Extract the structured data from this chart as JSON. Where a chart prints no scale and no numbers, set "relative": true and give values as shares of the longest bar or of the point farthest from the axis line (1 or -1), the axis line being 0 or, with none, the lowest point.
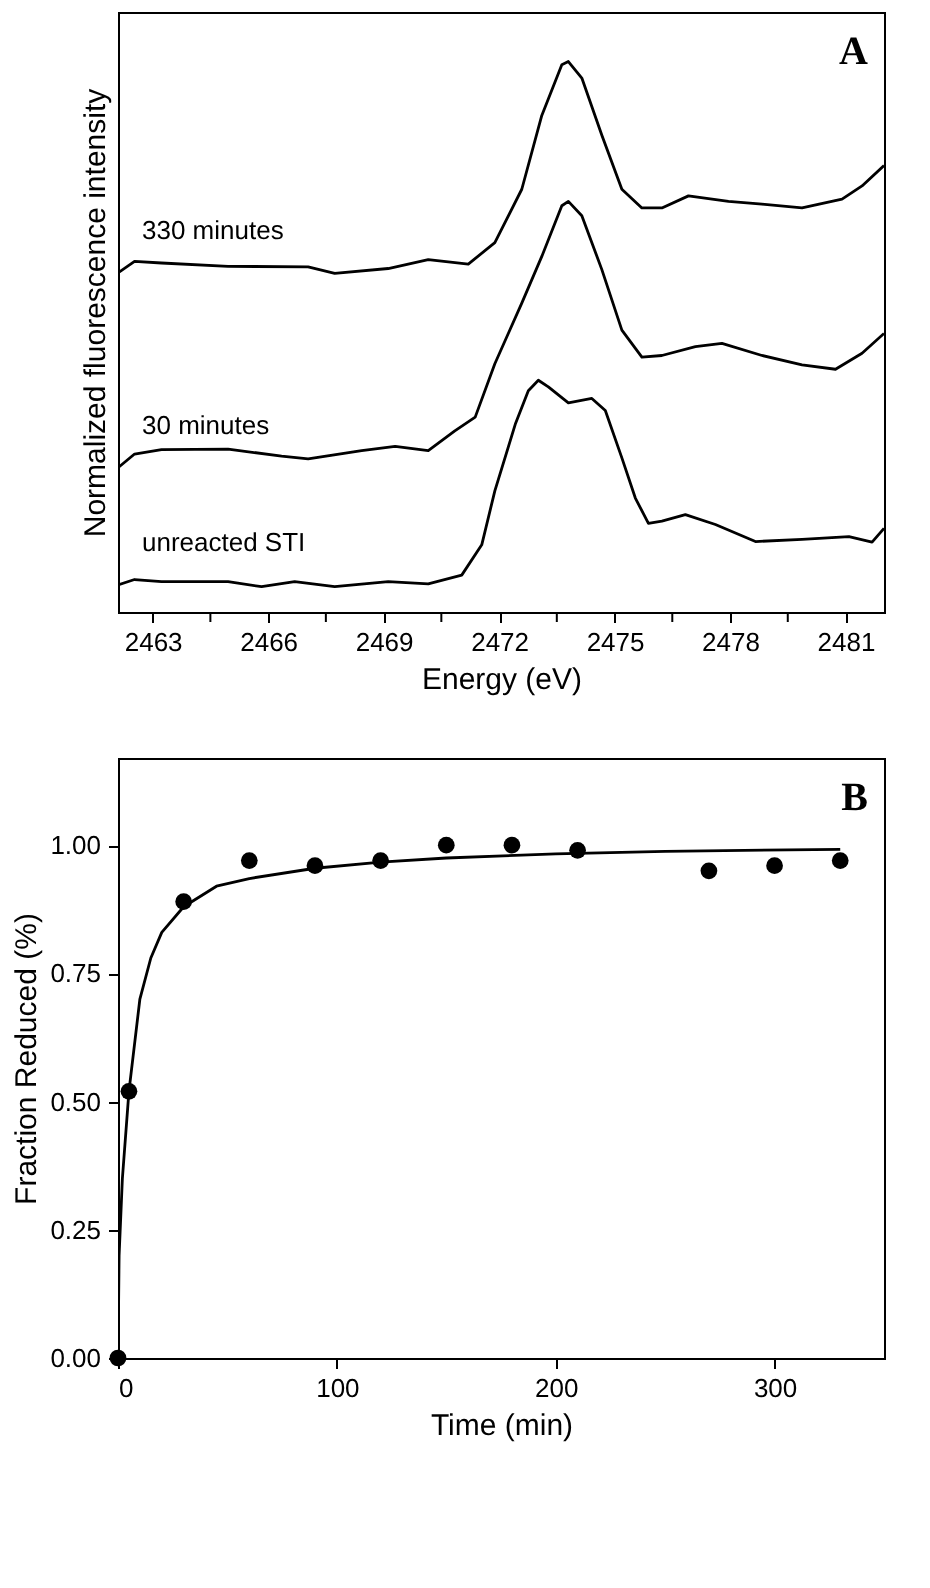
{
  "chart_data": [
    {
      "type": "line",
      "relative": true,
      "xlabel": "Energy (eV)",
      "ylabel": "Normalized fluorescence intensity",
      "annotations": [
        "A"
      ],
      "tick_labels": "x",
      "grid": false,
      "line_style": "solid",
      "xlim": [
        2462.1,
        2482.0
      ],
      "xticks": [
        2463,
        {
          "value": 2464.5,
          "label": null
        },
        2466,
        {
          "value": 2467.5,
          "label": null
        },
        2469,
        {
          "value": 2470.5,
          "label": null
        },
        2472,
        {
          "value": 2473.5,
          "label": null
        },
        2475,
        {
          "value": 2476.5,
          "label": null
        },
        2478,
        {
          "value": 2479.5,
          "label": null
        },
        2481
      ],
      "series": [
        {
          "name": "330 minutes",
          "color": "#000000",
          "x": [
            2462.1,
            2462.53,
            2463.23,
            2464.96,
            2467.04,
            2467.73,
            2469.12,
            2470.16,
            2471.2,
            2471.89,
            2472.59,
            2473.11,
            2473.63,
            2473.8,
            2474.15,
            2474.67,
            2475.19,
            2475.71,
            2476.23,
            2476.92,
            2477.96,
            2478.83,
            2479.87,
            2480.91,
            2481.43,
            2482.0
          ],
          "values": [
            0.616,
            0.637,
            0.634,
            0.628,
            0.627,
            0.615,
            0.624,
            0.64,
            0.632,
            0.671,
            0.768,
            0.902,
            0.994,
            1.0,
            0.97,
            0.866,
            0.768,
            0.734,
            0.734,
            0.756,
            0.746,
            0.741,
            0.734,
            0.75,
            0.774,
            0.811
          ]
        },
        {
          "name": "30 minutes",
          "color": "#000000",
          "x": [
            2462.1,
            2462.53,
            2463.23,
            2464.96,
            2466.35,
            2467.04,
            2468.43,
            2469.3,
            2470.16,
            2470.85,
            2471.38,
            2471.89,
            2472.59,
            2473.11,
            2473.63,
            2473.8,
            2474.15,
            2474.67,
            2475.19,
            2475.71,
            2476.23,
            2477.1,
            2477.79,
            2478.83,
            2479.87,
            2480.74,
            2481.43,
            2482.0
          ],
          "values": [
            0.262,
            0.287,
            0.295,
            0.296,
            0.283,
            0.278,
            0.293,
            0.301,
            0.293,
            0.329,
            0.354,
            0.451,
            0.561,
            0.646,
            0.738,
            0.746,
            0.72,
            0.622,
            0.512,
            0.463,
            0.466,
            0.482,
            0.488,
            0.466,
            0.449,
            0.441,
            0.47,
            0.506
          ]
        },
        {
          "name": "unreacted STI",
          "color": "#000000",
          "x": [
            2462.1,
            2462.53,
            2463.23,
            2464.96,
            2465.83,
            2466.69,
            2467.73,
            2469.12,
            2470.16,
            2471.03,
            2471.55,
            2471.89,
            2472.42,
            2472.76,
            2473.02,
            2473.28,
            2473.8,
            2474.41,
            2474.76,
            2475.19,
            2475.54,
            2475.88,
            2476.23,
            2476.84,
            2477.62,
            2478.66,
            2479.87,
            2481.09,
            2481.69,
            2482.0
          ],
          "values": [
            0.049,
            0.059,
            0.055,
            0.055,
            0.046,
            0.055,
            0.046,
            0.055,
            0.051,
            0.067,
            0.122,
            0.22,
            0.341,
            0.402,
            0.421,
            0.409,
            0.38,
            0.388,
            0.366,
            0.28,
            0.207,
            0.161,
            0.165,
            0.177,
            0.159,
            0.128,
            0.132,
            0.137,
            0.127,
            0.152
          ]
        }
      ]
    },
    {
      "type": "scatter",
      "xlabel": "Time (min)",
      "ylabel": "Fraction Reduced (%)",
      "annotations": [
        "B"
      ],
      "grid": false,
      "marker": "circle",
      "xlim": [
        0,
        350
      ],
      "xticks": [
        0,
        100,
        200,
        300
      ],
      "ylim": [
        0,
        1.17
      ],
      "yticks": [
        {
          "value": 0,
          "label": "0.00"
        },
        0.25,
        {
          "value": 0.5,
          "label": "0.50"
        },
        0.75,
        {
          "value": 1,
          "label": "1.00"
        }
      ],
      "series": [
        {
          "color": "#000000",
          "x": [
            0,
            5,
            30,
            60,
            90,
            120,
            150,
            180,
            210,
            270,
            300,
            330
          ],
          "values": [
            0,
            0.52,
            0.89,
            0.97,
            0.96,
            0.97,
            1.0,
            1.0,
            0.99,
            0.95,
            0.96,
            0.97
          ]
        },
        {
          "type": "line",
          "color": "#000000",
          "line_style": "solid",
          "marker": "none",
          "x": [
            0,
            0.5,
            2,
            5,
            10,
            15,
            20,
            30,
            45,
            60,
            90,
            120,
            150,
            200,
            250,
            330
          ],
          "values": [
            0,
            0.2,
            0.35,
            0.52,
            0.7,
            0.78,
            0.83,
            0.88,
            0.92,
            0.935,
            0.955,
            0.967,
            0.975,
            0.983,
            0.988,
            0.992
          ]
        }
      ]
    }
  ]
}
